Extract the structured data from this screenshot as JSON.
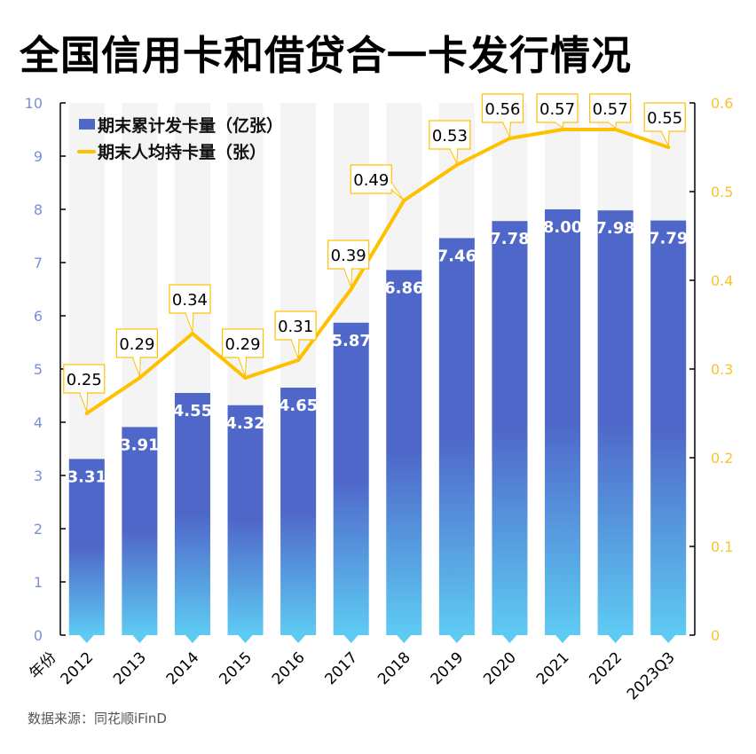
{
  "title": "全国信用卡和借贷合一卡发行情况",
  "source": "数据来源：同花顺iFinD",
  "colors": {
    "bar_top": "#4F67C9",
    "bar_bottom": "#5ECBF3",
    "line": "#FFC000",
    "stripe": "#F4F4F4",
    "left_axis_text": "#7B8FD8",
    "right_axis_text": "#F7C42C"
  },
  "chart_data": {
    "type": "bar",
    "title": "全国信用卡和借贷合一卡发行情况",
    "xlabel": "年份",
    "ylabel": "",
    "categories": [
      "2012",
      "2013",
      "2014",
      "2015",
      "2016",
      "2017",
      "2018",
      "2019",
      "2020",
      "2021",
      "2022",
      "2023Q3"
    ],
    "series": [
      {
        "name": "期末累计发卡量（亿张）",
        "type": "bar",
        "axis": "left",
        "values": [
          3.31,
          3.91,
          4.55,
          4.32,
          4.65,
          5.87,
          6.86,
          7.46,
          7.78,
          8.0,
          7.98,
          7.79
        ],
        "labels": [
          "3.31",
          "3.91",
          "4.55",
          "4.32",
          "4.65",
          "5.87",
          "6.86",
          "7.46",
          "7.78",
          "8.00",
          "7.98",
          "7.79"
        ]
      },
      {
        "name": "期末人均持卡量（张）",
        "type": "line",
        "axis": "right",
        "values": [
          0.25,
          0.29,
          0.34,
          0.29,
          0.31,
          0.39,
          0.49,
          0.53,
          0.56,
          0.57,
          0.57,
          0.55
        ],
        "labels": [
          "0.25",
          "0.29",
          "0.34",
          "0.29",
          "0.31",
          "0.39",
          "0.49",
          "0.53",
          "0.56",
          "0.57",
          "0.57",
          "0.55"
        ]
      }
    ],
    "y_left": {
      "range": [
        0,
        10
      ],
      "ticks": [
        "0",
        "1",
        "2",
        "3",
        "4",
        "5",
        "6",
        "7",
        "8",
        "9",
        "10"
      ]
    },
    "y_right": {
      "range": [
        0,
        0.6
      ],
      "ticks": [
        "0",
        "0.1",
        "0.2",
        "0.3",
        "0.4",
        "0.5",
        "0.6"
      ]
    },
    "grid": false,
    "background_stripes": true,
    "legend": "top-left"
  }
}
